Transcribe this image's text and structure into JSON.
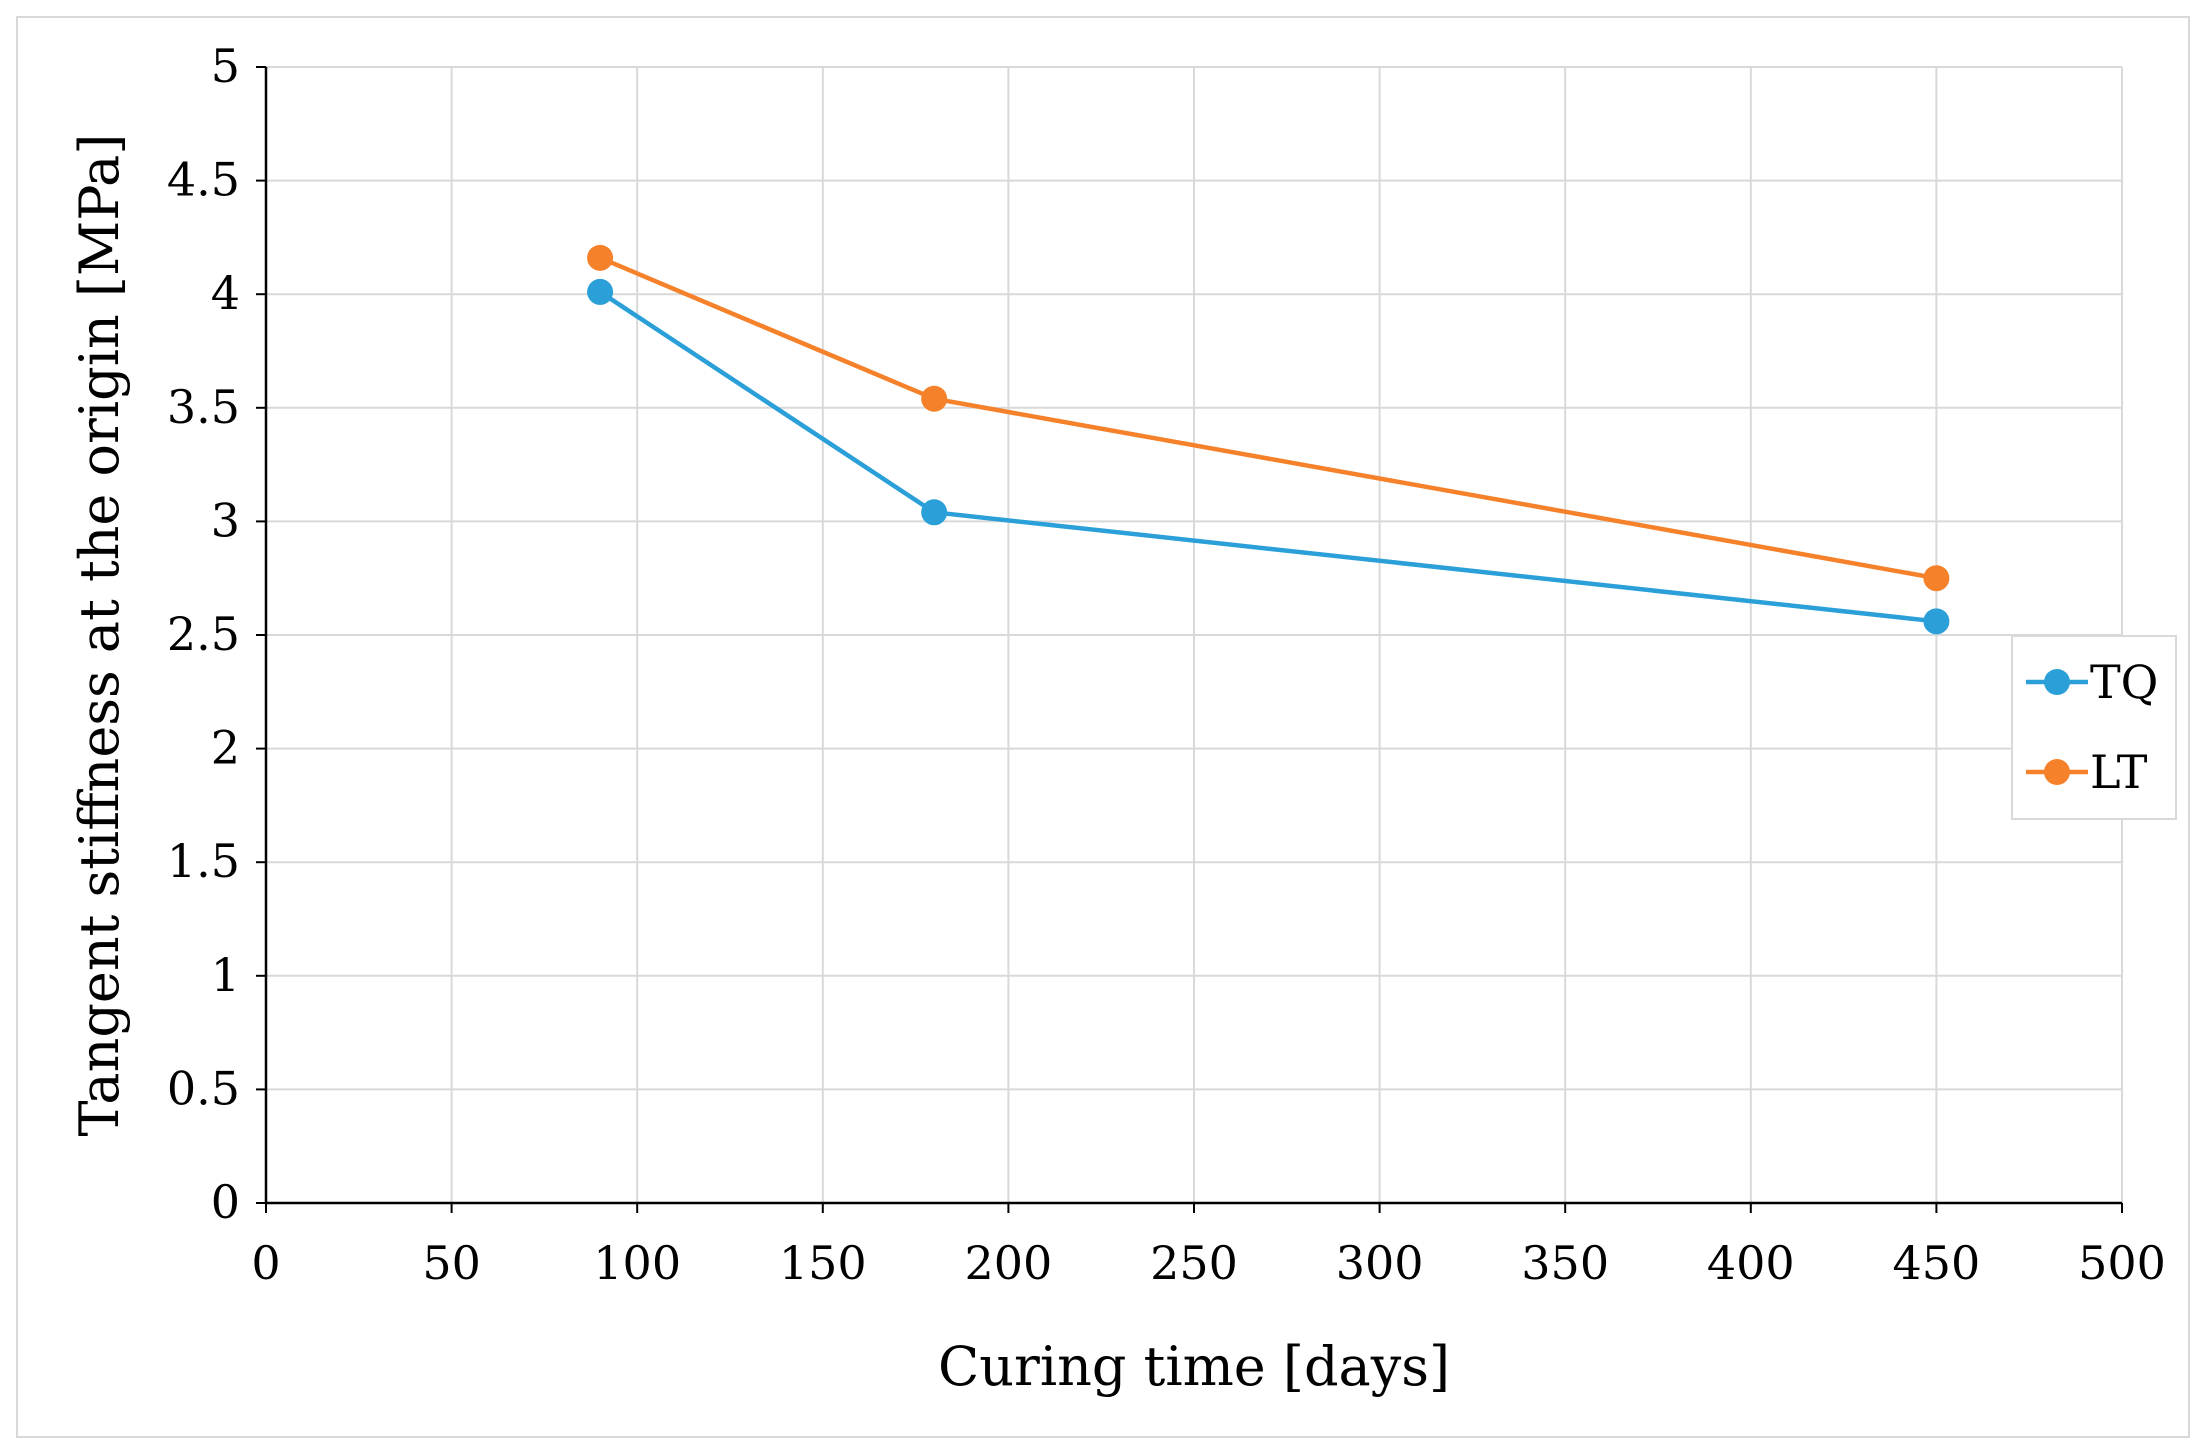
{
  "chart_data": {
    "type": "line",
    "title": "",
    "xlabel": "Curing time   [days]",
    "ylabel": "Tangent stiffness at the origin   [MPa]",
    "xlim": [
      0,
      500
    ],
    "ylim": [
      0,
      5
    ],
    "xticks": [
      0,
      50,
      100,
      150,
      200,
      250,
      300,
      350,
      400,
      450,
      500
    ],
    "yticks": [
      0,
      0.5,
      1,
      1.5,
      2,
      2.5,
      3,
      3.5,
      4,
      4.5,
      5
    ],
    "grid": true,
    "legend_position": "right",
    "series": [
      {
        "name": "TQ",
        "color": "#2a9fd8",
        "x": [
          90,
          180,
          450
        ],
        "y": [
          4.01,
          3.04,
          2.56
        ]
      },
      {
        "name": "LT",
        "color": "#f5822a",
        "x": [
          90,
          180,
          450
        ],
        "y": [
          4.16,
          3.54,
          2.75
        ]
      }
    ]
  }
}
